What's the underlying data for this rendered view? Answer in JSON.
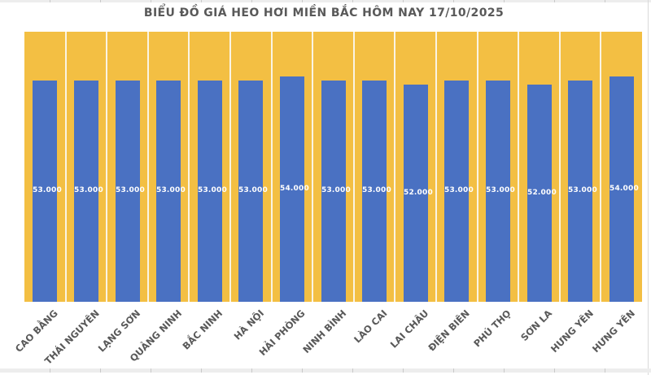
{
  "page": {
    "background": "#FFFFFF"
  },
  "chart_data": {
    "type": "bar",
    "title": "BIỂU ĐỒ GIÁ HEO HƠI MIỀN BẮC HÔM NAY 17/10/2025",
    "categories": [
      "CAO BẰNG",
      "THÁI NGUYÊN",
      "LẠNG SƠN",
      "QUẢNG NINH",
      "BẮC NINH",
      "HÀ NỘI",
      "HẢI PHÒNG",
      "NINH BÌNH",
      "LÀO CAI",
      "LAI CHÂU",
      "ĐIỆN BIÊN",
      "PHÚ THỌ",
      "SƠN LA",
      "HƯNG YÊN",
      "HƯNG YÊN"
    ],
    "values": [
      53000,
      53000,
      53000,
      53000,
      53000,
      53000,
      54000,
      53000,
      53000,
      52000,
      53000,
      53000,
      52000,
      53000,
      54000
    ],
    "value_labels": [
      "53.000",
      "53.000",
      "53.000",
      "53.000",
      "53.000",
      "53.000",
      "54.000",
      "53.000",
      "53.000",
      "52.000",
      "53.000",
      "53.000",
      "52.000",
      "53.000",
      "54.000"
    ],
    "xlabel": "",
    "ylabel": "",
    "ylim": [
      0,
      64700
    ],
    "y_axis_visible": false,
    "x_axis_visible": false,
    "legend": "none",
    "grid": "vertical-white-category-separators",
    "data_label_position": "center-of-bar",
    "colors": {
      "bar": "#4A71C2",
      "plot_background": "#F3BF43",
      "separator": "#FAF4E4",
      "title_text": "#595959",
      "category_text": "#595959",
      "value_label_text": "#FFFFFF"
    }
  }
}
